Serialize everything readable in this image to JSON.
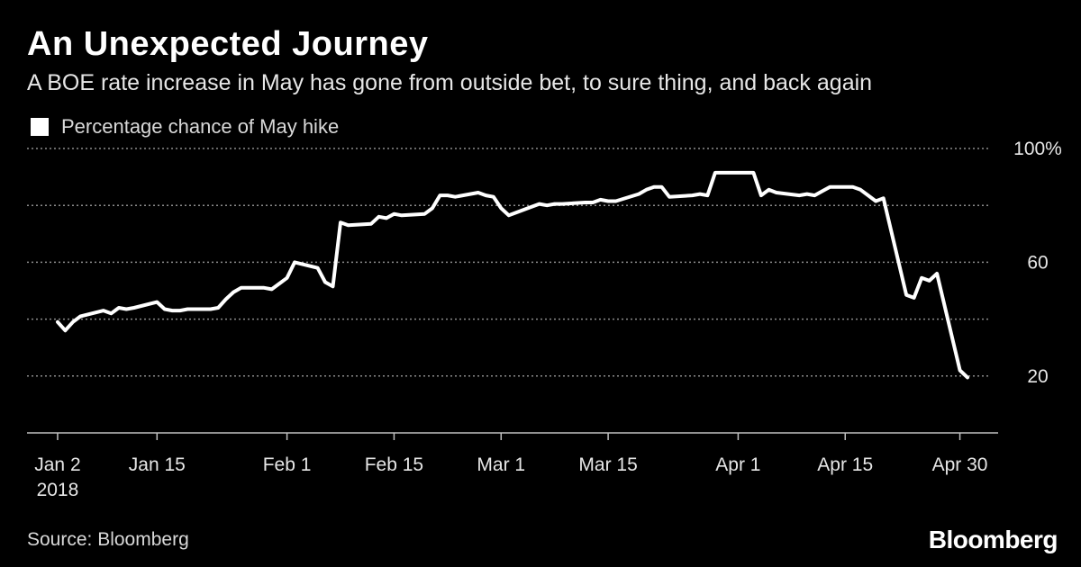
{
  "header": {
    "title": "An Unexpected Journey",
    "subtitle": "A BOE rate increase in May has gone from outside bet, to sure thing, and back again"
  },
  "footer": {
    "source": "Source: Bloomberg",
    "brand": "Bloomberg"
  },
  "colors": {
    "background": "#000000",
    "line": "#ffffff",
    "grid": "#8c8c8c"
  },
  "chart_data": {
    "type": "line",
    "title": "An Unexpected Journey",
    "subtitle": "A BOE rate increase in May has gone from outside bet, to sure thing, and back again",
    "legend": {
      "position": "top-left",
      "entries": [
        "Percentage chance of May hike"
      ]
    },
    "grid": true,
    "x_ticks": [
      {
        "date": "2018-01-02",
        "label": "Jan 2",
        "sublabel": "2018"
      },
      {
        "date": "2018-01-15",
        "label": "Jan 15"
      },
      {
        "date": "2018-02-01",
        "label": "Feb 1"
      },
      {
        "date": "2018-02-15",
        "label": "Feb 15"
      },
      {
        "date": "2018-03-01",
        "label": "Mar 1"
      },
      {
        "date": "2018-03-15",
        "label": "Mar 15"
      },
      {
        "date": "2018-04-01",
        "label": "Apr 1"
      },
      {
        "date": "2018-04-15",
        "label": "Apr 15"
      },
      {
        "date": "2018-04-30",
        "label": "Apr 30"
      }
    ],
    "y_ticks": [
      {
        "value": 100,
        "label": "100%"
      },
      {
        "value": 80,
        "label": ""
      },
      {
        "value": 60,
        "label": "60"
      },
      {
        "value": 40,
        "label": ""
      },
      {
        "value": 20,
        "label": "20"
      }
    ],
    "xlim": [
      "2017-12-29",
      "2018-05-05"
    ],
    "ylim": [
      0,
      100
    ],
    "series": [
      {
        "name": "Percentage chance of May hike",
        "color": "#ffffff",
        "points": [
          [
            "2018-01-02",
            39
          ],
          [
            "2018-01-03",
            36
          ],
          [
            "2018-01-04",
            39
          ],
          [
            "2018-01-05",
            41
          ],
          [
            "2018-01-08",
            43
          ],
          [
            "2018-01-09",
            42
          ],
          [
            "2018-01-10",
            44
          ],
          [
            "2018-01-11",
            43.5
          ],
          [
            "2018-01-12",
            44
          ],
          [
            "2018-01-15",
            46
          ],
          [
            "2018-01-16",
            43.5
          ],
          [
            "2018-01-17",
            43
          ],
          [
            "2018-01-18",
            43
          ],
          [
            "2018-01-19",
            43.5
          ],
          [
            "2018-01-22",
            43.5
          ],
          [
            "2018-01-23",
            44
          ],
          [
            "2018-01-24",
            47
          ],
          [
            "2018-01-25",
            49.5
          ],
          [
            "2018-01-26",
            51
          ],
          [
            "2018-01-29",
            51
          ],
          [
            "2018-01-30",
            50.5
          ],
          [
            "2018-01-31",
            52.5
          ],
          [
            "2018-02-01",
            54.5
          ],
          [
            "2018-02-02",
            60
          ],
          [
            "2018-02-05",
            58
          ],
          [
            "2018-02-06",
            53
          ],
          [
            "2018-02-07",
            51.5
          ],
          [
            "2018-02-08",
            74
          ],
          [
            "2018-02-09",
            73
          ],
          [
            "2018-02-12",
            73.5
          ],
          [
            "2018-02-13",
            76
          ],
          [
            "2018-02-14",
            75.5
          ],
          [
            "2018-02-15",
            77
          ],
          [
            "2018-02-16",
            76.5
          ],
          [
            "2018-02-19",
            77
          ],
          [
            "2018-02-20",
            79
          ],
          [
            "2018-02-21",
            83.5
          ],
          [
            "2018-02-22",
            83.5
          ],
          [
            "2018-02-23",
            83
          ],
          [
            "2018-02-26",
            84.5
          ],
          [
            "2018-02-27",
            83.5
          ],
          [
            "2018-02-28",
            83
          ],
          [
            "2018-03-01",
            79
          ],
          [
            "2018-03-02",
            76.5
          ],
          [
            "2018-03-05",
            79.5
          ],
          [
            "2018-03-06",
            80.5
          ],
          [
            "2018-03-07",
            80
          ],
          [
            "2018-03-08",
            80.5
          ],
          [
            "2018-03-09",
            80.5
          ],
          [
            "2018-03-12",
            81
          ],
          [
            "2018-03-13",
            81
          ],
          [
            "2018-03-14",
            82
          ],
          [
            "2018-03-15",
            81.5
          ],
          [
            "2018-03-16",
            81.5
          ],
          [
            "2018-03-19",
            84
          ],
          [
            "2018-03-20",
            85.5
          ],
          [
            "2018-03-21",
            86.5
          ],
          [
            "2018-03-22",
            86.5
          ],
          [
            "2018-03-23",
            83
          ],
          [
            "2018-03-26",
            83.5
          ],
          [
            "2018-03-27",
            84
          ],
          [
            "2018-03-28",
            83.5
          ],
          [
            "2018-03-29",
            91.5
          ],
          [
            "2018-04-03",
            91.5
          ],
          [
            "2018-04-04",
            83.5
          ],
          [
            "2018-04-05",
            85.5
          ],
          [
            "2018-04-06",
            84.5
          ],
          [
            "2018-04-09",
            83.5
          ],
          [
            "2018-04-10",
            84
          ],
          [
            "2018-04-11",
            83.5
          ],
          [
            "2018-04-12",
            85
          ],
          [
            "2018-04-13",
            86.5
          ],
          [
            "2018-04-16",
            86.5
          ],
          [
            "2018-04-17",
            85.5
          ],
          [
            "2018-04-18",
            83.5
          ],
          [
            "2018-04-19",
            81.5
          ],
          [
            "2018-04-20",
            82.5
          ],
          [
            "2018-04-23",
            48.5
          ],
          [
            "2018-04-24",
            47.5
          ],
          [
            "2018-04-25",
            54.5
          ],
          [
            "2018-04-26",
            53.5
          ],
          [
            "2018-04-27",
            56
          ],
          [
            "2018-04-30",
            22
          ],
          [
            "2018-05-01",
            19.5
          ]
        ]
      }
    ]
  }
}
